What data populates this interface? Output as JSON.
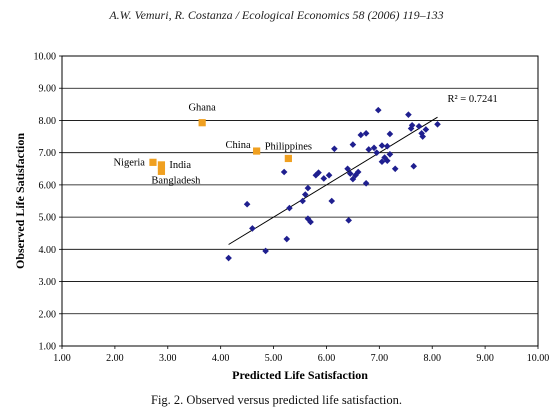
{
  "header": "A.W. Vemuri, R. Costanza / Ecological Economics 58 (2006) 119–133",
  "caption": "Fig. 2. Observed versus predicted life satisfaction.",
  "colors": {
    "main": "#1f1f8f",
    "highlight": "#f0a020",
    "grid": "#000000"
  },
  "chart_data": {
    "type": "scatter",
    "xlabel": "Predicted Life Satisfaction",
    "ylabel": "Observed Life Satisfaction",
    "xlim": [
      1,
      10
    ],
    "ylim": [
      1,
      10
    ],
    "xticks": [
      "1.00",
      "2.00",
      "3.00",
      "4.00",
      "5.00",
      "6.00",
      "7.00",
      "8.00",
      "9.00",
      "10.00"
    ],
    "yticks": [
      "1.00",
      "2.00",
      "3.00",
      "4.00",
      "5.00",
      "6.00",
      "7.00",
      "8.00",
      "9.00",
      "10.00"
    ],
    "grid": "horizontal",
    "series": [
      {
        "marker": "diamond",
        "color": "#1f1f8f",
        "points": [
          [
            4.15,
            3.73
          ],
          [
            4.5,
            5.4
          ],
          [
            4.6,
            4.65
          ],
          [
            4.85,
            3.95
          ],
          [
            5.2,
            6.4
          ],
          [
            5.25,
            4.32
          ],
          [
            5.3,
            5.28
          ],
          [
            5.55,
            5.5
          ],
          [
            5.6,
            5.7
          ],
          [
            5.65,
            4.95
          ],
          [
            5.65,
            5.9
          ],
          [
            5.7,
            4.85
          ],
          [
            5.8,
            6.3
          ],
          [
            5.85,
            6.38
          ],
          [
            5.95,
            6.2
          ],
          [
            6.05,
            6.3
          ],
          [
            6.1,
            5.5
          ],
          [
            6.15,
            7.12
          ],
          [
            6.4,
            6.5
          ],
          [
            6.42,
            4.9
          ],
          [
            6.45,
            6.35
          ],
          [
            6.5,
            7.25
          ],
          [
            6.5,
            6.18
          ],
          [
            6.55,
            6.3
          ],
          [
            6.6,
            6.4
          ],
          [
            6.65,
            7.55
          ],
          [
            6.75,
            7.6
          ],
          [
            6.75,
            6.05
          ],
          [
            6.8,
            7.1
          ],
          [
            6.9,
            7.15
          ],
          [
            6.95,
            7.0
          ],
          [
            6.98,
            8.32
          ],
          [
            7.05,
            7.22
          ],
          [
            7.05,
            6.72
          ],
          [
            7.1,
            6.85
          ],
          [
            7.15,
            6.75
          ],
          [
            7.15,
            7.2
          ],
          [
            7.2,
            7.58
          ],
          [
            7.2,
            6.95
          ],
          [
            7.3,
            6.5
          ],
          [
            7.55,
            8.18
          ],
          [
            7.6,
            7.75
          ],
          [
            7.62,
            7.85
          ],
          [
            7.65,
            6.58
          ],
          [
            7.75,
            7.82
          ],
          [
            7.8,
            7.6
          ],
          [
            7.82,
            7.5
          ],
          [
            7.88,
            7.72
          ],
          [
            8.1,
            7.88
          ]
        ]
      },
      {
        "marker": "square",
        "color": "#f0a020",
        "points": [
          {
            "x": 3.65,
            "y": 7.93,
            "label": "Ghana"
          },
          {
            "x": 4.68,
            "y": 7.05,
            "label": "China"
          },
          {
            "x": 5.28,
            "y": 6.82,
            "label": "Philippines"
          },
          {
            "x": 2.72,
            "y": 6.7,
            "label": "Nigeria"
          },
          {
            "x": 2.88,
            "y": 6.62,
            "label": "India"
          },
          {
            "x": 2.88,
            "y": 6.42,
            "label": "Bangladesh"
          }
        ]
      }
    ],
    "trendline": {
      "x": [
        4.15,
        8.1
      ],
      "y": [
        4.15,
        8.1
      ],
      "label": "R² = 0.7241"
    }
  }
}
